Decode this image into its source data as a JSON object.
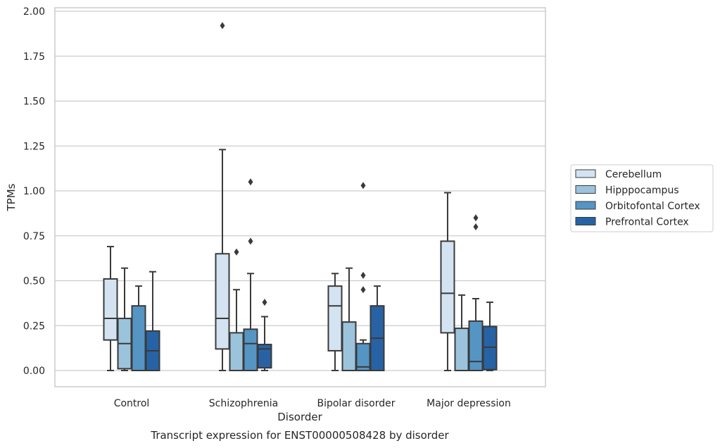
{
  "chart_data": {
    "type": "box",
    "title": "Transcript expression for ENST00000508428 by disorder",
    "xlabel": "Disorder",
    "ylabel": "TPMs",
    "ylim": [
      -0.09,
      2.01
    ],
    "yticks": [
      "0.00",
      "0.25",
      "0.50",
      "0.75",
      "1.00",
      "1.25",
      "1.50",
      "1.75",
      "2.00"
    ],
    "grid": true,
    "legend_position": "right",
    "categories": [
      "Control",
      "Schizophrenia",
      "Bipolar disorder",
      "Major depression"
    ],
    "series": [
      {
        "name": "Cerebellum",
        "color": "#d4e3f1",
        "boxes": [
          {
            "whisker_low": 0.0,
            "q1": 0.17,
            "median": 0.29,
            "q3": 0.51,
            "whisker_high": 0.69,
            "outliers": []
          },
          {
            "whisker_low": 0.0,
            "q1": 0.12,
            "median": 0.29,
            "q3": 0.65,
            "whisker_high": 1.23,
            "outliers": [
              1.92
            ]
          },
          {
            "whisker_low": 0.0,
            "q1": 0.11,
            "median": 0.36,
            "q3": 0.47,
            "whisker_high": 0.54,
            "outliers": []
          },
          {
            "whisker_low": 0.0,
            "q1": 0.21,
            "median": 0.43,
            "q3": 0.72,
            "whisker_high": 0.99,
            "outliers": []
          }
        ]
      },
      {
        "name": "Hipppocampus",
        "color": "#9cc3dc",
        "boxes": [
          {
            "whisker_low": 0.0,
            "q1": 0.01,
            "median": 0.15,
            "q3": 0.29,
            "whisker_high": 0.57,
            "outliers": []
          },
          {
            "whisker_low": 0.0,
            "q1": 0.0,
            "median": 0.0,
            "q3": 0.21,
            "whisker_high": 0.45,
            "outliers": [
              0.66
            ]
          },
          {
            "whisker_low": 0.0,
            "q1": 0.0,
            "median": 0.0,
            "q3": 0.27,
            "whisker_high": 0.57,
            "outliers": []
          },
          {
            "whisker_low": 0.0,
            "q1": 0.0,
            "median": 0.0,
            "q3": 0.235,
            "whisker_high": 0.42,
            "outliers": []
          }
        ]
      },
      {
        "name": "Orbitofontal Cortex",
        "color": "#5595c4",
        "boxes": [
          {
            "whisker_low": 0.0,
            "q1": 0.0,
            "median": 0.0,
            "q3": 0.36,
            "whisker_high": 0.47,
            "outliers": []
          },
          {
            "whisker_low": 0.0,
            "q1": 0.0,
            "median": 0.15,
            "q3": 0.23,
            "whisker_high": 0.54,
            "outliers": [
              0.72,
              1.05
            ]
          },
          {
            "whisker_low": 0.0,
            "q1": 0.0,
            "median": 0.02,
            "q3": 0.15,
            "whisker_high": 0.17,
            "outliers": [
              0.45,
              0.53,
              1.03
            ]
          },
          {
            "whisker_low": 0.0,
            "q1": 0.0,
            "median": 0.05,
            "q3": 0.275,
            "whisker_high": 0.4,
            "outliers": [
              0.8,
              0.85
            ]
          }
        ]
      },
      {
        "name": "Prefrontal Cortex",
        "color": "#2763a4",
        "boxes": [
          {
            "whisker_low": 0.0,
            "q1": 0.0,
            "median": 0.11,
            "q3": 0.22,
            "whisker_high": 0.55,
            "outliers": []
          },
          {
            "whisker_low": 0.0,
            "q1": 0.015,
            "median": 0.12,
            "q3": 0.145,
            "whisker_high": 0.3,
            "outliers": [
              0.38
            ]
          },
          {
            "whisker_low": 0.0,
            "q1": 0.0,
            "median": 0.18,
            "q3": 0.36,
            "whisker_high": 0.47,
            "outliers": []
          },
          {
            "whisker_low": 0.0,
            "q1": 0.005,
            "median": 0.13,
            "q3": 0.245,
            "whisker_high": 0.38,
            "outliers": []
          }
        ]
      }
    ]
  }
}
